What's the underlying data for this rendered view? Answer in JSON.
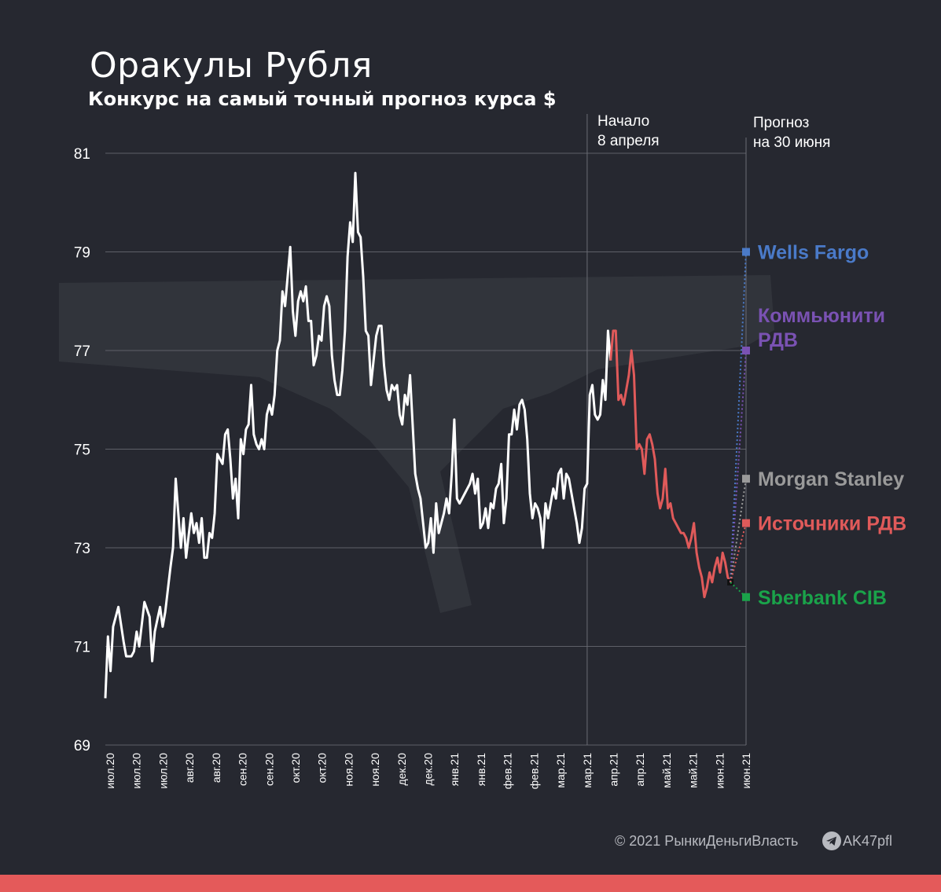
{
  "header": {
    "title": "Оракулы Рубля",
    "subtitle": "Конкурс на самый точный прогноз курса $"
  },
  "annotations": {
    "start_line1": "Начало",
    "start_line2": "8 апреля",
    "forecast_line1": "Прогноз",
    "forecast_line2": "на 30 июня"
  },
  "footer": {
    "copyright": "© 2021  РынкиДеньгиВласть",
    "handle": "AK47pfl"
  },
  "colors": {
    "background": "#262830",
    "history": "#ffffff",
    "contest": "#e05a5a",
    "grid": "#5e6068",
    "bottom_bar": "#e45a5a"
  },
  "chart_data": {
    "type": "line",
    "title": "Оракулы Рубля",
    "subtitle": "Конкурс на самый точный прогноз курса $",
    "ylim": [
      69,
      81
    ],
    "yticks": [
      69,
      71,
      73,
      75,
      77,
      79,
      81
    ],
    "grid": true,
    "xtick_labels": [
      "июл.20",
      "июл.20",
      "июл.20",
      "авг.20",
      "авг.20",
      "сен.20",
      "сен.20",
      "окт.20",
      "окт.20",
      "ноя.20",
      "ноя.20",
      "дек.20",
      "дек.20",
      "янв.21",
      "янв.21",
      "фев.21",
      "фев.21",
      "мар.21",
      "мар.21",
      "апр.21",
      "апр.21",
      "май.21",
      "май.21",
      "июн.21",
      "июн.21"
    ],
    "x_range": [
      0,
      246
    ],
    "start_marker_x": 185,
    "forecast_x": 246,
    "series": [
      {
        "role": "history",
        "color": "#ffffff",
        "points": [
          [
            0,
            69.95
          ],
          [
            1,
            71.2
          ],
          [
            2,
            70.5
          ],
          [
            3,
            71.4
          ],
          [
            5,
            71.8
          ],
          [
            7,
            71.1
          ],
          [
            8,
            70.8
          ],
          [
            10,
            70.8
          ],
          [
            11,
            70.9
          ],
          [
            12,
            71.3
          ],
          [
            13,
            71.0
          ],
          [
            15,
            71.9
          ],
          [
            17,
            71.6
          ],
          [
            18,
            70.7
          ],
          [
            19,
            71.3
          ],
          [
            21,
            71.8
          ],
          [
            22,
            71.4
          ],
          [
            23,
            71.7
          ],
          [
            25,
            72.6
          ],
          [
            26,
            73.0
          ],
          [
            27,
            74.4
          ],
          [
            29,
            73.0
          ],
          [
            30,
            73.6
          ],
          [
            31,
            72.8
          ],
          [
            33,
            73.7
          ],
          [
            34,
            73.3
          ],
          [
            35,
            73.5
          ],
          [
            36,
            73.1
          ],
          [
            37,
            73.6
          ],
          [
            38,
            72.8
          ],
          [
            39,
            72.8
          ],
          [
            40,
            73.3
          ],
          [
            41,
            73.2
          ],
          [
            42,
            73.7
          ],
          [
            43,
            74.9
          ],
          [
            44,
            74.8
          ],
          [
            45,
            74.7
          ],
          [
            46,
            75.3
          ],
          [
            47,
            75.4
          ],
          [
            48,
            74.8
          ],
          [
            49,
            74.0
          ],
          [
            50,
            74.4
          ],
          [
            51,
            73.6
          ],
          [
            52,
            75.2
          ],
          [
            53,
            74.9
          ],
          [
            54,
            75.4
          ],
          [
            55,
            75.5
          ],
          [
            56,
            76.3
          ],
          [
            57,
            75.3
          ],
          [
            58,
            75.1
          ],
          [
            59,
            75.0
          ],
          [
            60,
            75.2
          ],
          [
            61,
            75.0
          ],
          [
            62,
            75.7
          ],
          [
            63,
            75.9
          ],
          [
            64,
            75.7
          ],
          [
            65,
            76.1
          ],
          [
            66,
            77.0
          ],
          [
            67,
            77.2
          ],
          [
            68,
            78.2
          ],
          [
            69,
            77.9
          ],
          [
            70,
            78.5
          ],
          [
            71,
            79.1
          ],
          [
            72,
            77.8
          ],
          [
            73,
            77.3
          ],
          [
            74,
            78.0
          ],
          [
            75,
            78.2
          ],
          [
            76,
            78.0
          ],
          [
            77,
            78.3
          ],
          [
            78,
            77.6
          ],
          [
            79,
            77.6
          ],
          [
            80,
            76.7
          ],
          [
            81,
            76.9
          ],
          [
            82,
            77.3
          ],
          [
            83,
            77.2
          ],
          [
            84,
            77.9
          ],
          [
            85,
            78.1
          ],
          [
            86,
            77.9
          ],
          [
            87,
            76.9
          ],
          [
            88,
            76.4
          ],
          [
            89,
            76.1
          ],
          [
            90,
            76.1
          ],
          [
            91,
            76.6
          ],
          [
            92,
            77.4
          ],
          [
            93,
            78.9
          ],
          [
            94,
            79.6
          ],
          [
            95,
            79.2
          ],
          [
            96,
            80.6
          ],
          [
            97,
            79.4
          ],
          [
            98,
            79.3
          ],
          [
            99,
            78.5
          ],
          [
            100,
            77.4
          ],
          [
            101,
            77.3
          ],
          [
            102,
            76.3
          ],
          [
            103,
            76.8
          ],
          [
            104,
            77.3
          ],
          [
            105,
            77.5
          ],
          [
            106,
            77.5
          ],
          [
            107,
            76.7
          ],
          [
            108,
            76.2
          ],
          [
            109,
            76.0
          ],
          [
            110,
            76.3
          ],
          [
            111,
            76.2
          ],
          [
            112,
            76.3
          ],
          [
            113,
            75.7
          ],
          [
            114,
            75.5
          ],
          [
            115,
            76.1
          ],
          [
            116,
            75.9
          ],
          [
            117,
            76.5
          ],
          [
            118,
            75.5
          ],
          [
            119,
            74.5
          ],
          [
            120,
            74.2
          ],
          [
            121,
            74.0
          ],
          [
            122,
            73.5
          ],
          [
            123,
            73.0
          ],
          [
            124,
            73.1
          ],
          [
            125,
            73.6
          ],
          [
            126,
            72.9
          ],
          [
            127,
            73.9
          ],
          [
            128,
            73.3
          ],
          [
            129,
            73.5
          ],
          [
            130,
            73.7
          ],
          [
            131,
            74.0
          ],
          [
            132,
            73.7
          ],
          [
            133,
            74.5
          ],
          [
            134,
            75.6
          ],
          [
            135,
            74.0
          ],
          [
            136,
            73.9
          ],
          [
            137,
            74.0
          ],
          [
            138,
            74.1
          ],
          [
            139,
            74.2
          ],
          [
            140,
            74.3
          ],
          [
            141,
            74.5
          ],
          [
            142,
            74.1
          ],
          [
            143,
            74.4
          ],
          [
            144,
            73.4
          ],
          [
            145,
            73.5
          ],
          [
            146,
            73.8
          ],
          [
            147,
            73.4
          ],
          [
            148,
            73.9
          ],
          [
            149,
            73.8
          ],
          [
            150,
            74.2
          ],
          [
            151,
            74.3
          ],
          [
            152,
            74.7
          ],
          [
            153,
            73.5
          ],
          [
            154,
            74.0
          ],
          [
            155,
            75.3
          ],
          [
            156,
            75.3
          ],
          [
            157,
            75.8
          ],
          [
            158,
            75.4
          ],
          [
            159,
            75.9
          ],
          [
            160,
            76.0
          ],
          [
            161,
            75.8
          ],
          [
            162,
            75.2
          ],
          [
            163,
            74.1
          ],
          [
            164,
            73.6
          ],
          [
            165,
            73.9
          ],
          [
            166,
            73.8
          ],
          [
            167,
            73.6
          ],
          [
            168,
            73.0
          ],
          [
            169,
            73.9
          ],
          [
            170,
            73.6
          ],
          [
            171,
            73.9
          ],
          [
            172,
            74.2
          ],
          [
            173,
            74.0
          ],
          [
            174,
            74.5
          ],
          [
            175,
            74.6
          ],
          [
            176,
            74.0
          ],
          [
            177,
            74.5
          ],
          [
            178,
            74.4
          ],
          [
            179,
            74.1
          ],
          [
            180,
            73.8
          ],
          [
            181,
            73.5
          ],
          [
            182,
            73.1
          ],
          [
            183,
            73.4
          ],
          [
            184,
            74.2
          ],
          [
            185,
            74.3
          ],
          [
            186,
            76.1
          ],
          [
            187,
            76.3
          ],
          [
            188,
            75.7
          ],
          [
            189,
            75.6
          ],
          [
            190,
            75.7
          ],
          [
            191,
            76.4
          ],
          [
            192,
            76.0
          ],
          [
            193,
            77.4
          ],
          [
            194,
            76.8
          ]
        ]
      },
      {
        "role": "contest",
        "color": "#e05a5a",
        "points": [
          [
            194,
            76.8
          ],
          [
            195,
            77.4
          ],
          [
            196,
            77.4
          ],
          [
            197,
            76.0
          ],
          [
            198,
            76.1
          ],
          [
            199,
            75.9
          ],
          [
            200,
            76.2
          ],
          [
            201,
            76.5
          ],
          [
            202,
            77.0
          ],
          [
            203,
            76.5
          ],
          [
            204,
            75.0
          ],
          [
            205,
            75.1
          ],
          [
            206,
            75.0
          ],
          [
            207,
            74.5
          ],
          [
            208,
            75.2
          ],
          [
            209,
            75.3
          ],
          [
            210,
            75.1
          ],
          [
            211,
            74.8
          ],
          [
            212,
            74.1
          ],
          [
            213,
            73.8
          ],
          [
            214,
            74.0
          ],
          [
            215,
            74.6
          ],
          [
            216,
            73.8
          ],
          [
            217,
            73.9
          ],
          [
            218,
            73.6
          ],
          [
            219,
            73.5
          ],
          [
            220,
            73.4
          ],
          [
            221,
            73.3
          ],
          [
            222,
            73.3
          ],
          [
            223,
            73.2
          ],
          [
            224,
            73.0
          ],
          [
            225,
            73.2
          ],
          [
            226,
            73.5
          ],
          [
            227,
            72.9
          ],
          [
            228,
            72.6
          ],
          [
            229,
            72.4
          ],
          [
            230,
            72.0
          ],
          [
            231,
            72.2
          ],
          [
            232,
            72.5
          ],
          [
            233,
            72.3
          ],
          [
            234,
            72.6
          ],
          [
            235,
            72.8
          ],
          [
            236,
            72.5
          ],
          [
            237,
            72.9
          ],
          [
            238,
            72.7
          ],
          [
            239,
            72.4
          ],
          [
            240,
            72.3
          ]
        ]
      }
    ],
    "forecasts": [
      {
        "name": "Wells Fargo",
        "value": 79.0,
        "color": "#4a7ac8"
      },
      {
        "name": "Коммьюнити РДВ",
        "value": 77.0,
        "color": "#7a52b3"
      },
      {
        "name": "Morgan Stanley",
        "value": 74.4,
        "color": "#9a9a9a"
      },
      {
        "name": "Источники РДВ",
        "value": 73.5,
        "color": "#e05a5a"
      },
      {
        "name": "Sberbank CIB",
        "value": 72.0,
        "color": "#1aa34a"
      }
    ],
    "forecast_label_lines": [
      [
        "Wells Fargo"
      ],
      [
        "Коммьюнити",
        "РДВ"
      ],
      [
        "Morgan Stanley"
      ],
      [
        "Источники РДВ"
      ],
      [
        "Sberbank CIB"
      ]
    ],
    "forecast_start": [
      240,
      72.3
    ]
  }
}
